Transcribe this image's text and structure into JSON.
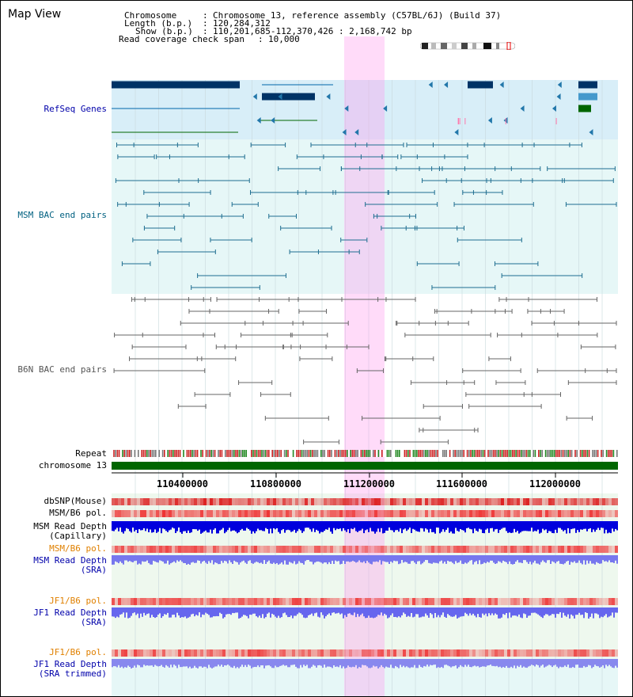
{
  "page": {
    "title": "Map View"
  },
  "info": {
    "chromosome_key": "Chromosome",
    "chromosome_value": "Chromosome 13, reference assembly (C57BL/6J) (Build 37)",
    "length_key": "Length (b.p.)",
    "length_value": "120,284,312",
    "show_key": "Show (b.p.)",
    "show_value": "110,201,685-112,370,426 : 2,168,742 bp",
    "coverage_key": "Read coverage check span",
    "coverage_value": "10,000",
    "sep": ":"
  },
  "tracks": {
    "refseq": "RefSeq Genes",
    "msm_bac": "MSM BAC end pairs",
    "b6n_bac": "B6N BAC end pairs",
    "repeat": "Repeat",
    "chromosome": "chromosome 13",
    "dbsnp": "dbSNP(Mouse)",
    "msm_b6_pol_1": "MSM/B6 pol.",
    "msm_depth_cap_1": "MSM Read Depth",
    "msm_depth_cap_2": "(Capillary)",
    "msm_b6_pol_2": "MSM/B6 pol.",
    "msm_depth_sra_1": "MSM Read Depth",
    "msm_depth_sra_2": "(SRA)",
    "jf1_b6_pol_1": "JF1/B6 pol.",
    "jf1_depth_sra_1": "JF1 Read Depth",
    "jf1_depth_sra_2": "(SRA)",
    "jf1_b6_pol_2": "JF1/B6 pol.",
    "jf1_depth_trim_1": "JF1 Read Depth",
    "jf1_depth_trim_2": "(SRA trimmed)"
  },
  "axis": {
    "ticks": [
      "110400000",
      "110800000",
      "111200000",
      "111600000",
      "112000000"
    ]
  },
  "colors": {
    "refseq_label": "#0000aa",
    "msm_bac_label": "#006080",
    "b6n_bac_label": "#555555",
    "orange_label": "#e08000",
    "blue_label": "#0000aa",
    "highlight": "#ff99ee",
    "refseq_bg": "#d8eef8",
    "msm_bg": "#e6f7f7",
    "chrom_bar": "#006600"
  }
}
